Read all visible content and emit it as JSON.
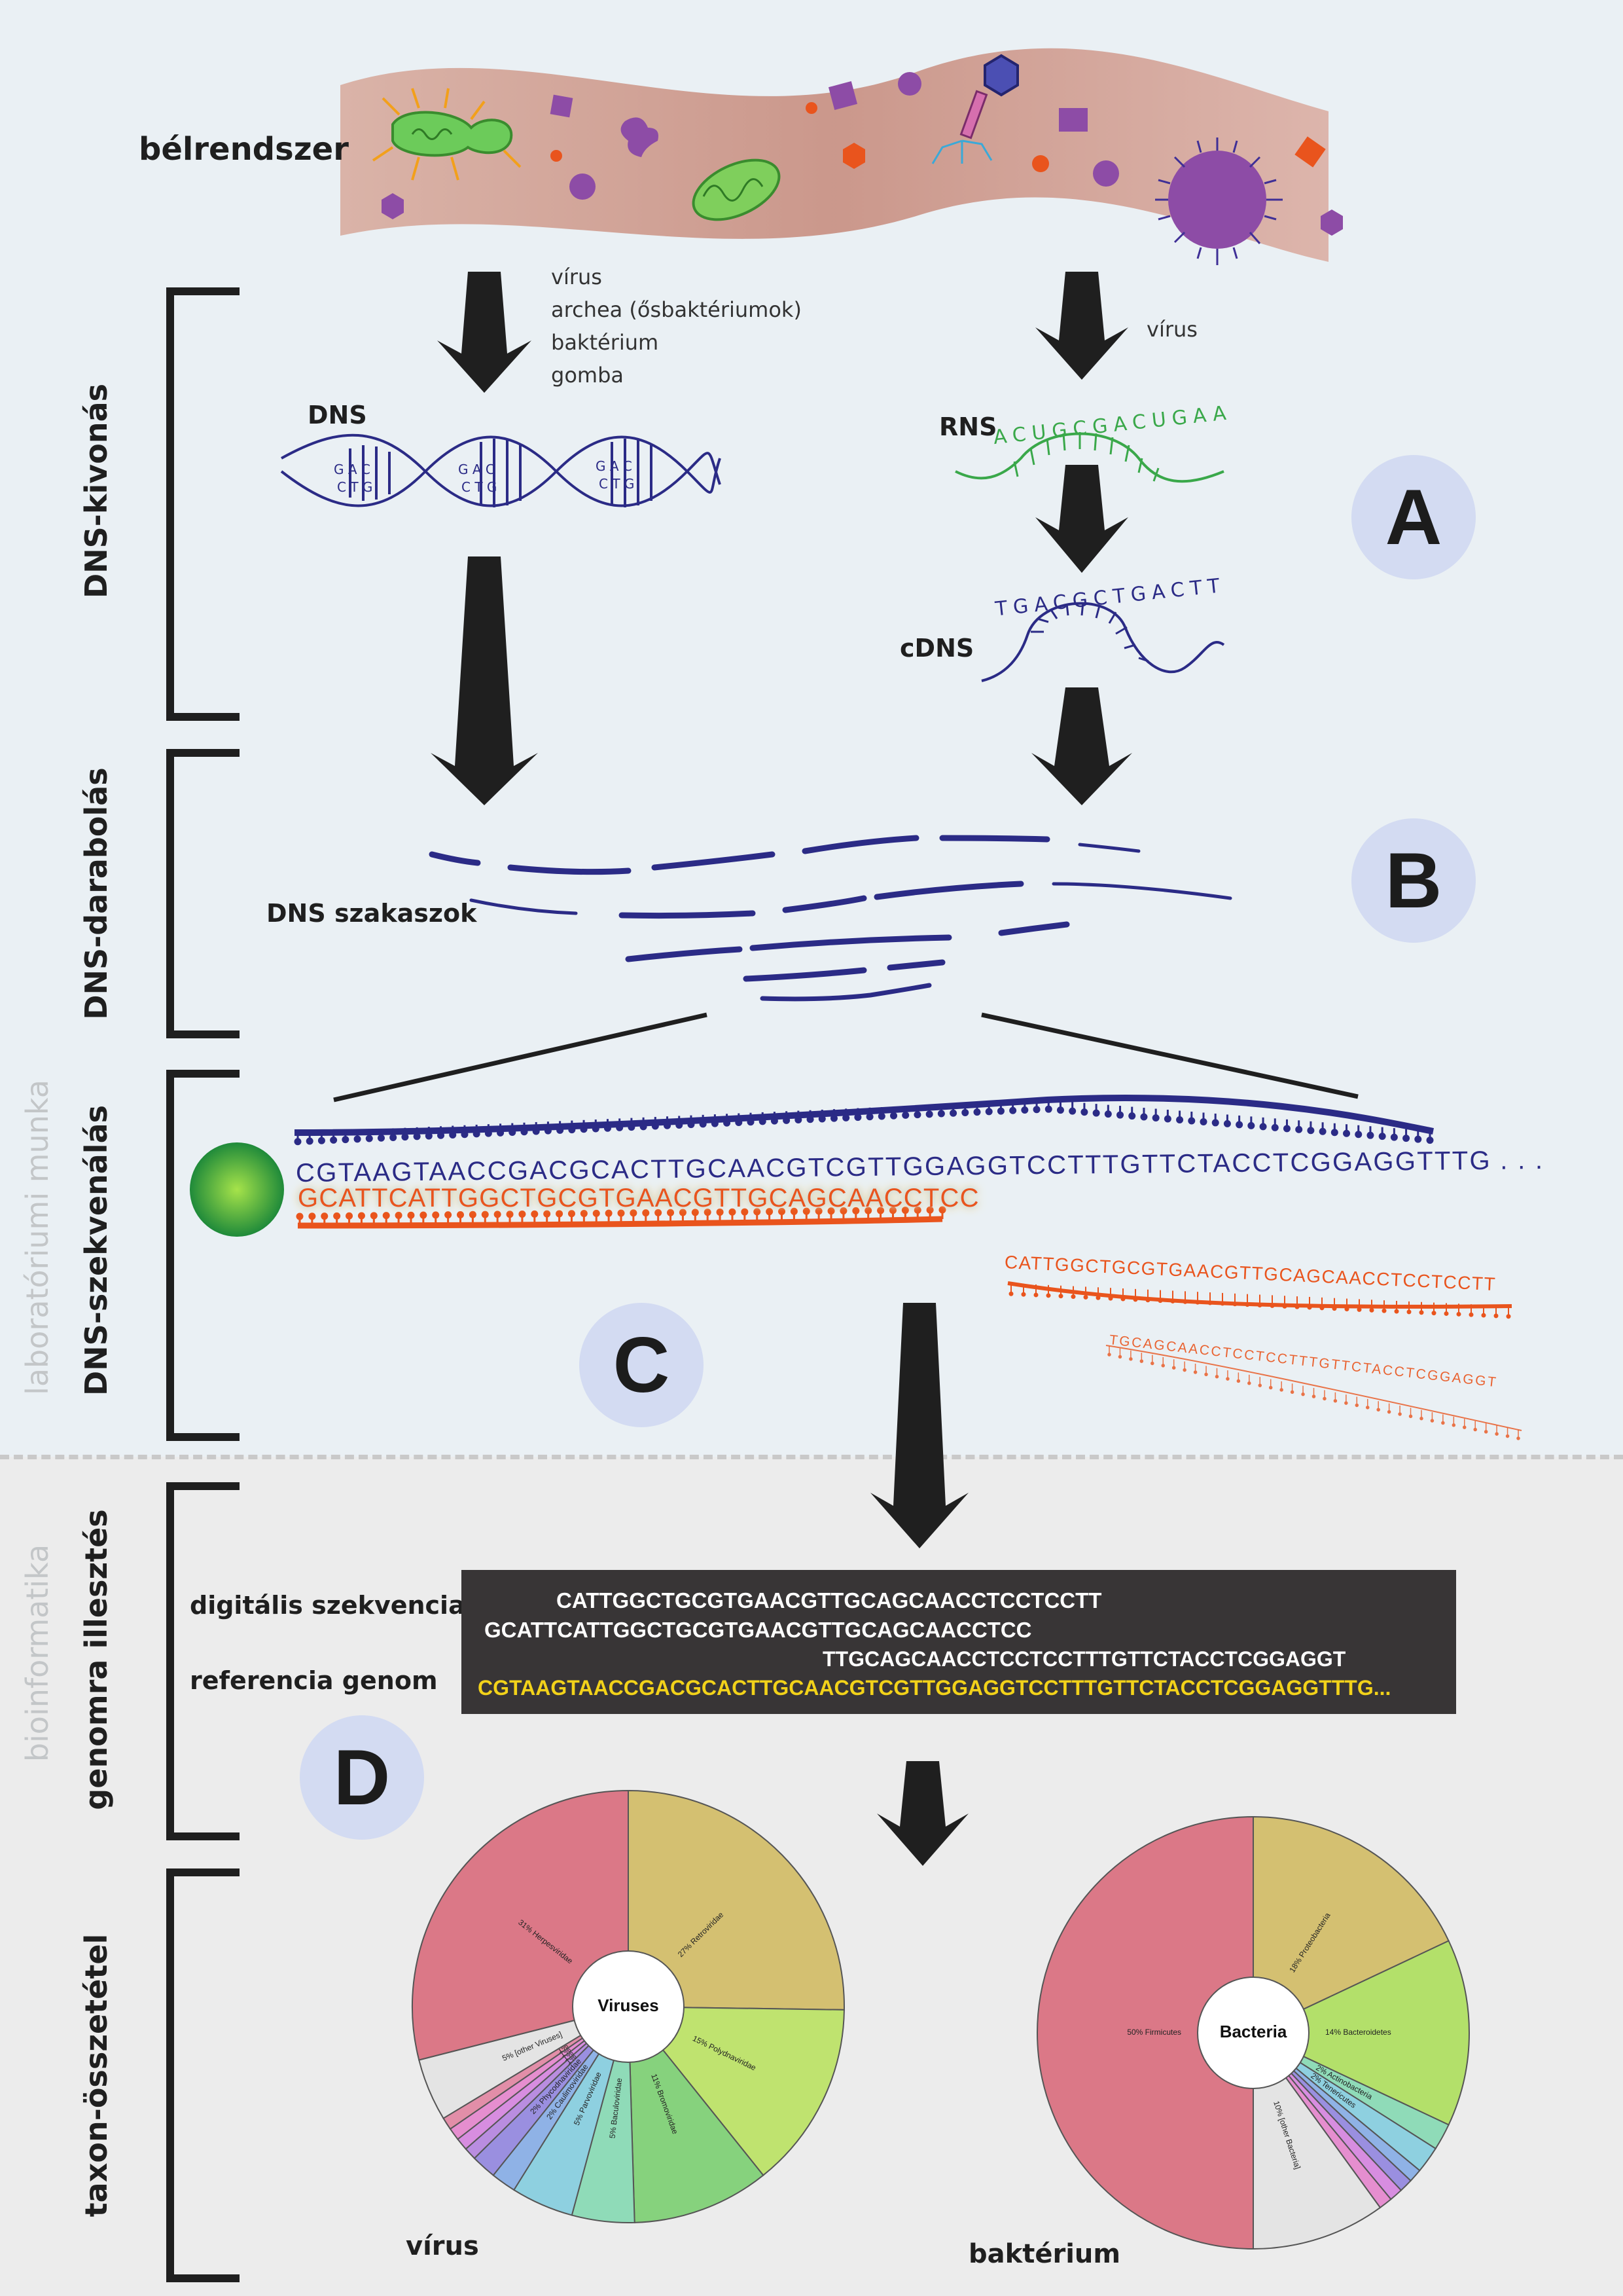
{
  "colors": {
    "panel_top": "#eaf0f4",
    "panel_bottom": "#ececec",
    "dna_blue": "#2b2b86",
    "rna_green": "#3aa84a",
    "seq_orange": "#e9541d",
    "reference_yellow": "#f2d21a",
    "badge": "#d3dbf2"
  },
  "gut": {
    "label": "bélrendszer"
  },
  "left_branch": {
    "organisms": [
      "vírus",
      "archea (ősbaktériumok)",
      "baktérium",
      "gomba"
    ],
    "dna_label": "DNS",
    "dna_bases": [
      "G A C",
      "C T G"
    ]
  },
  "right_branch": {
    "organism": "vírus",
    "rna_label": "RNS",
    "rna_seq": "ACUGCGACUGAA",
    "cdna_label": "cDNS",
    "cdna_seq": "TGACGCTGACTT"
  },
  "brackets": {
    "dna_extraction": "DNS-kivonás",
    "dna_fragmentation": "DNS-darabolás",
    "dna_sequencing": "DNS-szekvenálás",
    "genome_alignment": "genomra illesztés",
    "taxon_composition": "taxon-összetétel"
  },
  "sections": {
    "lab_work": "laboratóriumi munka",
    "bioinformatics": "bioinformatika"
  },
  "badges": {
    "a": "A",
    "b": "B",
    "c": "C",
    "d": "D"
  },
  "fragments_label": "DNS szakaszok",
  "sequencing": {
    "template_strand": "CGTAAGTAACCGACGCACTTGCAACGTCGTTGGAGGTCCTTTGTTCTACCTCGGAGGTTTG . . .",
    "growing_strand": "GCATTCATTGGCTGCGTGAACGTTGCAGCAACCTCC",
    "read_1": "CATTGGCTGCGTGAACGTTGCAGCAACCTCCTCCTT",
    "read_2": "TGCAGCAACCTCCTCCTTTGTTCTACCTCGGAGGT"
  },
  "alignment": {
    "digital_label": "digitális szekvencia",
    "reference_label": "referencia genom",
    "read_a": "CATTGGCTGCGTGAACGTTGCAGCAACCTCCTCCTT",
    "read_b": "GCATTCATTGGCTGCGTGAACGTTGCAGCAACCTCC",
    "read_c": "TTGCAGCAACCTCCTCCTTTGTTCTACCTCGGAGGT",
    "reference": "CGTAAGTAACCGACGCACTTGCAACGTCGTTGGAGGTCCTTTGTTCTACCTCGGAGGTTTG..."
  },
  "chart_data": [
    {
      "type": "pie",
      "title": "Viruses",
      "caption": "vírus",
      "slices": [
        {
          "label": "Retroviridae",
          "pct_label": "27%",
          "value": 27,
          "color": "#d4c071"
        },
        {
          "label": "Polydnaviridae",
          "pct_label": "15%",
          "value": 15,
          "color": "#bfe36f"
        },
        {
          "label": "Bromoviridae",
          "pct_label": "11%",
          "value": 11,
          "color": "#86d27d"
        },
        {
          "label": "Baculoviridae",
          "pct_label": "5%",
          "value": 5,
          "color": "#8fdbb8"
        },
        {
          "label": "Parvoviridae",
          "pct_label": "5%",
          "value": 5,
          "color": "#8ed0e0"
        },
        {
          "label": "Caulimoviridae",
          "pct_label": "2%",
          "value": 2,
          "color": "#8fb2e6"
        },
        {
          "label": "Phycodnaviridae",
          "pct_label": "2%",
          "value": 2,
          "color": "#9a8fe0"
        },
        {
          "label": "",
          "pct_label": "1%",
          "value": 1,
          "color": "#b98de0"
        },
        {
          "label": "",
          "pct_label": "1%",
          "value": 1,
          "color": "#d78de0"
        },
        {
          "label": "",
          "pct_label": "1%",
          "value": 1,
          "color": "#e58ecf"
        },
        {
          "label": "",
          "pct_label": "1%",
          "value": 1,
          "color": "#e28ea8"
        },
        {
          "label": "[other Viruses]",
          "pct_label": "5%",
          "value": 5,
          "color": "#e4e4e4"
        },
        {
          "label": "Herpesviridae",
          "pct_label": "31%",
          "value": 31,
          "color": "#db7887"
        }
      ]
    },
    {
      "type": "pie",
      "title": "Bacteria",
      "caption": "baktérium",
      "slices": [
        {
          "label": "Proteobacteria",
          "pct_label": "18%",
          "value": 18,
          "color": "#d4c071"
        },
        {
          "label": "Bacteroidetes",
          "pct_label": "14%",
          "value": 14,
          "color": "#b3e06a"
        },
        {
          "label": "Actinobacteria",
          "pct_label": "2%",
          "value": 2,
          "color": "#8fdbb8"
        },
        {
          "label": "Tenericutes",
          "pct_label": "2%",
          "value": 2,
          "color": "#8ed0e0"
        },
        {
          "label": "",
          "pct_label": "",
          "value": 1,
          "color": "#8fb2e6"
        },
        {
          "label": "",
          "pct_label": "",
          "value": 1,
          "color": "#9a8fe0"
        },
        {
          "label": "",
          "pct_label": "",
          "value": 1,
          "color": "#d78de0"
        },
        {
          "label": "",
          "pct_label": "",
          "value": 1,
          "color": "#e58ecf"
        },
        {
          "label": "[other Bacteria]",
          "pct_label": "10%",
          "value": 10,
          "color": "#e4e4e4"
        },
        {
          "label": "Firmicutes",
          "pct_label": "50%",
          "value": 50,
          "color": "#db7887"
        }
      ]
    }
  ]
}
